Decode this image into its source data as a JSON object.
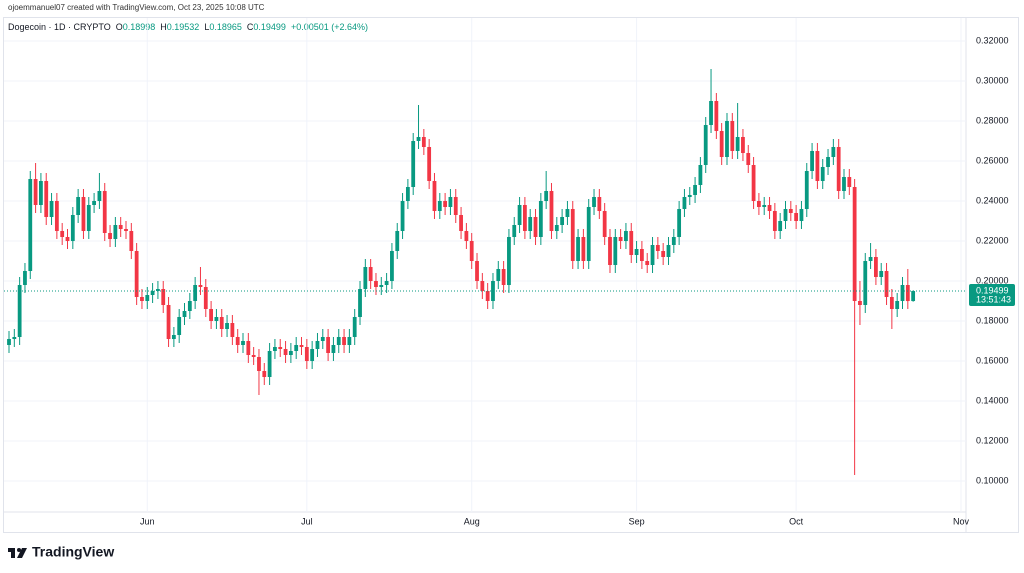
{
  "header": {
    "creator": "ojoemmanuel07 created with TradingView.com, Oct 23, 2025 10:08 UTC",
    "symbol": "Dogecoin · 1D · CRYPTO",
    "ohlc": [
      {
        "label": "O",
        "value": "0.18998"
      },
      {
        "label": "H",
        "value": "0.19532"
      },
      {
        "label": "L",
        "value": "0.18965"
      },
      {
        "label": "C",
        "value": "0.19499"
      }
    ],
    "change": "+0.00501 (+2.64%)",
    "logo": "TradingView"
  },
  "chart_data": {
    "type": "candlestick",
    "categories": [
      null,
      null,
      null,
      null,
      null,
      null,
      null,
      null,
      null,
      null,
      null,
      null,
      null,
      null,
      null,
      null,
      null,
      null,
      null,
      null,
      null,
      null,
      null,
      null,
      null,
      null,
      "Jun",
      null,
      null,
      null,
      null,
      null,
      null,
      null,
      null,
      null,
      null,
      null,
      null,
      null,
      null,
      null,
      null,
      null,
      null,
      null,
      null,
      null,
      null,
      null,
      null,
      null,
      null,
      null,
      null,
      null,
      "Jul",
      null,
      null,
      null,
      null,
      null,
      null,
      null,
      null,
      null,
      null,
      null,
      null,
      null,
      null,
      null,
      null,
      null,
      null,
      null,
      null,
      null,
      null,
      null,
      null,
      null,
      null,
      null,
      null,
      null,
      null,
      "Aug",
      null,
      null,
      null,
      null,
      null,
      null,
      null,
      null,
      null,
      null,
      null,
      null,
      null,
      null,
      null,
      null,
      null,
      null,
      null,
      null,
      null,
      null,
      null,
      null,
      null,
      null,
      null,
      null,
      null,
      null,
      "Sep",
      null,
      null,
      null,
      null,
      null,
      null,
      null,
      null,
      null,
      null,
      null,
      null,
      null,
      null,
      null,
      null,
      null,
      null,
      null,
      null,
      null,
      null,
      null,
      null,
      null,
      null,
      null,
      null,
      null,
      "Oct",
      null,
      null,
      null,
      null,
      null,
      null,
      null,
      null,
      null,
      null,
      null,
      null,
      null,
      null,
      null,
      null,
      null,
      null,
      null,
      null,
      null,
      null,
      null,
      null,
      null,
      null,
      null,
      null,
      null,
      null,
      "Nov"
    ],
    "series": [
      {
        "up_color": "#089981",
        "down_color": "#f23645",
        "open": [
          0.168,
          0.171,
          0.172,
          0.198,
          0.205,
          0.251,
          0.238,
          0.25,
          0.232,
          0.24,
          0.225,
          0.222,
          0.22,
          0.233,
          0.242,
          0.225,
          0.238,
          0.24,
          0.245,
          0.224,
          0.221,
          0.228,
          0.226,
          0.225,
          0.215,
          0.192,
          0.19,
          0.193,
          0.195,
          0.196,
          0.188,
          0.171,
          0.173,
          0.182,
          0.185,
          0.19,
          0.198,
          0.197,
          0.186,
          0.18,
          0.182,
          0.176,
          0.179,
          0.172,
          0.168,
          0.17,
          0.163,
          0.162,
          0.155,
          0.152,
          0.165,
          0.167,
          0.166,
          0.163,
          0.165,
          0.168,
          0.167,
          0.16,
          0.166,
          0.17,
          0.172,
          0.164,
          0.168,
          0.172,
          0.168,
          0.172,
          0.182,
          0.196,
          0.207,
          0.2,
          0.197,
          0.198,
          0.2,
          0.215,
          0.225,
          0.24,
          0.247,
          0.27,
          0.272,
          0.267,
          0.25,
          0.235,
          0.24,
          0.237,
          0.242,
          0.233,
          0.225,
          0.22,
          0.21,
          0.2,
          0.195,
          0.19,
          0.2,
          0.206,
          0.198,
          0.222,
          0.228,
          0.238,
          0.225,
          0.232,
          0.222,
          0.24,
          0.245,
          0.225,
          0.228,
          0.232,
          0.236,
          0.21,
          0.222,
          0.21,
          0.237,
          0.242,
          0.235,
          0.222,
          0.208,
          0.222,
          0.22,
          0.225,
          0.213,
          0.216,
          0.21,
          0.208,
          0.218,
          0.215,
          0.212,
          0.218,
          0.222,
          0.236,
          0.242,
          0.243,
          0.248,
          0.258,
          0.278,
          0.29,
          0.275,
          0.262,
          0.28,
          0.265,
          0.272,
          0.264,
          0.258,
          0.24,
          0.237,
          0.238,
          0.235,
          0.225,
          0.23,
          0.236,
          0.234,
          0.23,
          0.236,
          0.255,
          0.265,
          0.25,
          0.257,
          0.262,
          0.267,
          0.245,
          0.252,
          0.247,
          0.19,
          0.188,
          0.21,
          0.212,
          0.202,
          0.205,
          0.192,
          0.186,
          0.19,
          0.198,
          0.18998,
          null,
          null,
          null,
          null,
          null,
          null,
          null,
          null,
          null
        ],
        "high": [
          0.175,
          0.176,
          0.202,
          0.209,
          0.255,
          0.259,
          0.254,
          0.254,
          0.244,
          0.244,
          0.229,
          0.226,
          0.237,
          0.246,
          0.246,
          0.242,
          0.244,
          0.254,
          0.249,
          0.228,
          0.232,
          0.232,
          0.23,
          0.229,
          0.219,
          0.196,
          0.197,
          0.199,
          0.2,
          0.2,
          0.192,
          0.177,
          0.186,
          0.189,
          0.194,
          0.202,
          0.207,
          0.201,
          0.19,
          0.186,
          0.186,
          0.183,
          0.183,
          0.176,
          0.174,
          0.174,
          0.167,
          0.166,
          0.159,
          0.169,
          0.171,
          0.171,
          0.17,
          0.169,
          0.172,
          0.172,
          0.171,
          0.17,
          0.174,
          0.176,
          0.176,
          0.172,
          0.176,
          0.176,
          0.176,
          0.186,
          0.2,
          0.211,
          0.211,
          0.204,
          0.202,
          0.204,
          0.219,
          0.229,
          0.244,
          0.251,
          0.274,
          0.288,
          0.276,
          0.271,
          0.254,
          0.244,
          0.244,
          0.246,
          0.246,
          0.237,
          0.229,
          0.224,
          0.214,
          0.204,
          0.199,
          0.204,
          0.21,
          0.21,
          0.226,
          0.232,
          0.242,
          0.242,
          0.236,
          0.236,
          0.244,
          0.255,
          0.249,
          0.232,
          0.236,
          0.24,
          0.24,
          0.226,
          0.226,
          0.241,
          0.246,
          0.246,
          0.239,
          0.226,
          0.226,
          0.226,
          0.229,
          0.229,
          0.22,
          0.22,
          0.214,
          0.222,
          0.222,
          0.219,
          0.222,
          0.226,
          0.24,
          0.246,
          0.247,
          0.252,
          0.262,
          0.282,
          0.306,
          0.294,
          0.279,
          0.284,
          0.284,
          0.289,
          0.276,
          0.268,
          0.262,
          0.244,
          0.242,
          0.242,
          0.239,
          0.234,
          0.24,
          0.24,
          0.238,
          0.24,
          0.259,
          0.269,
          0.269,
          0.261,
          0.266,
          0.271,
          0.271,
          0.256,
          0.256,
          0.251,
          0.2,
          0.214,
          0.219,
          0.216,
          0.209,
          0.209,
          0.196,
          0.194,
          0.202,
          0.206,
          0.19532,
          null,
          null,
          null,
          null,
          null,
          null,
          null,
          null,
          null
        ],
        "low": [
          0.164,
          0.167,
          0.168,
          0.194,
          0.201,
          0.234,
          0.234,
          0.228,
          0.228,
          0.221,
          0.218,
          0.216,
          0.216,
          0.229,
          0.221,
          0.221,
          0.234,
          0.236,
          0.22,
          0.217,
          0.217,
          0.222,
          0.221,
          0.211,
          0.188,
          0.186,
          0.186,
          0.189,
          0.191,
          0.184,
          0.167,
          0.167,
          0.169,
          0.178,
          0.181,
          0.186,
          0.193,
          0.182,
          0.176,
          0.176,
          0.172,
          0.172,
          0.168,
          0.164,
          0.164,
          0.159,
          0.158,
          0.143,
          0.148,
          0.148,
          0.161,
          0.162,
          0.159,
          0.159,
          0.161,
          0.163,
          0.156,
          0.156,
          0.162,
          0.166,
          0.16,
          0.16,
          0.164,
          0.164,
          0.164,
          0.168,
          0.178,
          0.192,
          0.196,
          0.193,
          0.193,
          0.194,
          0.196,
          0.211,
          0.221,
          0.236,
          0.243,
          0.266,
          0.263,
          0.246,
          0.231,
          0.231,
          0.233,
          0.233,
          0.229,
          0.221,
          0.216,
          0.206,
          0.196,
          0.191,
          0.186,
          0.186,
          0.196,
          0.194,
          0.194,
          0.218,
          0.224,
          0.221,
          0.221,
          0.218,
          0.218,
          0.236,
          0.221,
          0.221,
          0.224,
          0.228,
          0.206,
          0.206,
          0.206,
          0.206,
          0.233,
          0.231,
          0.218,
          0.204,
          0.204,
          0.216,
          0.216,
          0.209,
          0.209,
          0.206,
          0.204,
          0.204,
          0.211,
          0.208,
          0.208,
          0.214,
          0.218,
          0.232,
          0.238,
          0.239,
          0.244,
          0.254,
          0.274,
          0.271,
          0.258,
          0.258,
          0.261,
          0.261,
          0.26,
          0.254,
          0.236,
          0.233,
          0.233,
          0.231,
          0.221,
          0.221,
          0.226,
          0.23,
          0.226,
          0.226,
          0.232,
          0.251,
          0.246,
          0.246,
          0.253,
          0.258,
          0.241,
          0.241,
          0.243,
          0.103,
          0.178,
          0.184,
          0.206,
          0.198,
          0.198,
          0.188,
          0.176,
          0.182,
          0.186,
          0.186,
          0.18965,
          null,
          null,
          null,
          null,
          null,
          null,
          null,
          null,
          null
        ],
        "close": [
          0.171,
          0.172,
          0.198,
          0.205,
          0.251,
          0.238,
          0.25,
          0.232,
          0.24,
          0.225,
          0.222,
          0.22,
          0.233,
          0.242,
          0.225,
          0.238,
          0.24,
          0.245,
          0.224,
          0.221,
          0.228,
          0.226,
          0.225,
          0.215,
          0.192,
          0.19,
          0.193,
          0.195,
          0.196,
          0.188,
          0.171,
          0.173,
          0.182,
          0.185,
          0.19,
          0.198,
          0.197,
          0.186,
          0.18,
          0.182,
          0.176,
          0.179,
          0.172,
          0.168,
          0.17,
          0.163,
          0.162,
          0.155,
          0.152,
          0.165,
          0.167,
          0.166,
          0.163,
          0.165,
          0.168,
          0.167,
          0.16,
          0.166,
          0.17,
          0.172,
          0.164,
          0.168,
          0.172,
          0.168,
          0.172,
          0.182,
          0.196,
          0.207,
          0.2,
          0.197,
          0.198,
          0.2,
          0.215,
          0.225,
          0.24,
          0.247,
          0.27,
          0.272,
          0.267,
          0.25,
          0.235,
          0.24,
          0.237,
          0.242,
          0.233,
          0.225,
          0.22,
          0.21,
          0.2,
          0.195,
          0.19,
          0.2,
          0.206,
          0.198,
          0.222,
          0.228,
          0.238,
          0.225,
          0.232,
          0.222,
          0.24,
          0.245,
          0.225,
          0.228,
          0.232,
          0.236,
          0.21,
          0.222,
          0.21,
          0.237,
          0.242,
          0.235,
          0.222,
          0.208,
          0.222,
          0.22,
          0.225,
          0.213,
          0.216,
          0.21,
          0.208,
          0.218,
          0.215,
          0.212,
          0.218,
          0.222,
          0.236,
          0.242,
          0.243,
          0.248,
          0.258,
          0.278,
          0.29,
          0.275,
          0.262,
          0.28,
          0.265,
          0.272,
          0.264,
          0.258,
          0.24,
          0.237,
          0.238,
          0.235,
          0.225,
          0.23,
          0.236,
          0.234,
          0.23,
          0.236,
          0.255,
          0.265,
          0.25,
          0.257,
          0.262,
          0.267,
          0.245,
          0.252,
          0.247,
          0.19,
          0.188,
          0.21,
          0.212,
          0.202,
          0.205,
          0.192,
          0.186,
          0.19,
          0.198,
          0.18998,
          0.19499,
          null,
          null,
          null,
          null,
          null,
          null,
          null,
          null,
          null
        ]
      }
    ],
    "ylim": [
      0.0755,
      0.3305
    ],
    "yticks": [
      {
        "value": 0.1,
        "label": "0.10000"
      },
      {
        "value": 0.12,
        "label": "0.12000"
      },
      {
        "value": 0.14,
        "label": "0.14000"
      },
      {
        "value": 0.16,
        "label": "0.16000"
      },
      {
        "value": 0.18,
        "label": "0.18000"
      },
      {
        "value": 0.2,
        "label": "0.20000"
      },
      {
        "value": 0.22,
        "label": "0.22000"
      },
      {
        "value": 0.24,
        "label": "0.24000"
      },
      {
        "value": 0.26,
        "label": "0.26000"
      },
      {
        "value": 0.28,
        "label": "0.28000"
      },
      {
        "value": 0.3,
        "label": "0.30000"
      },
      {
        "value": 0.32,
        "label": "0.32000"
      }
    ],
    "grid": true,
    "last_price": 0.19499,
    "countdown": "13:51:43"
  }
}
